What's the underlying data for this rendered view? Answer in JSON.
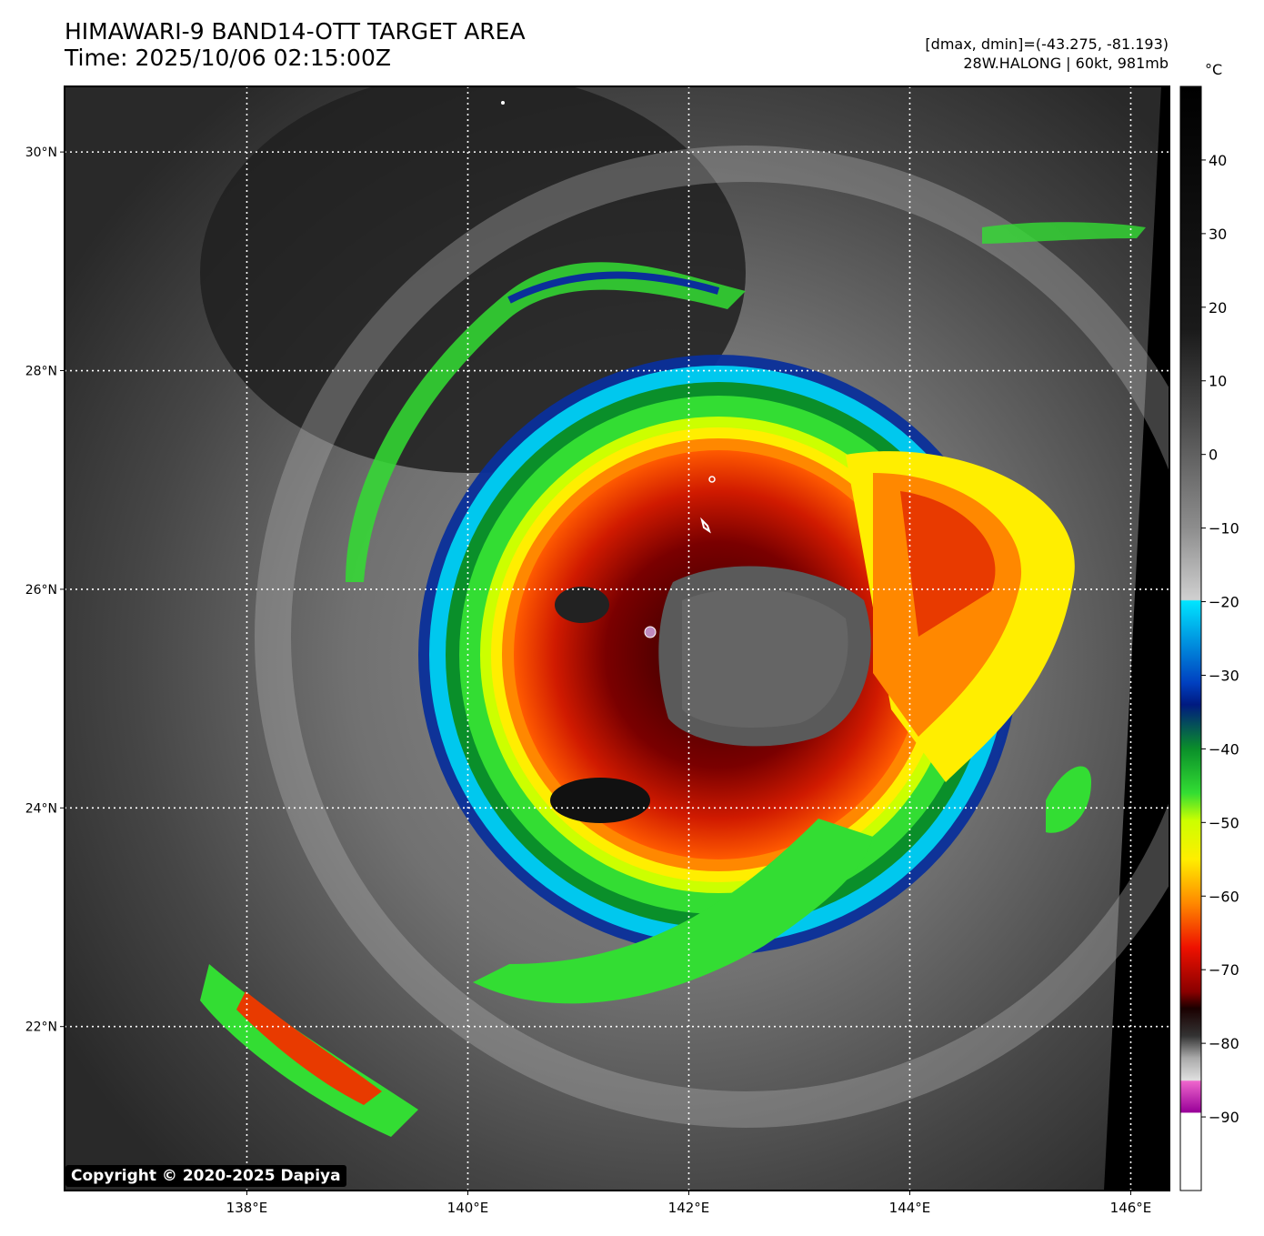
{
  "header": {
    "title_line1": "HIMAWARI-9 BAND14-OTT TARGET AREA",
    "title_line2": "Time: 2025/10/06 02:15:00Z",
    "dminmax": "[dmax, dmin]=(-43.275, -81.193)",
    "storm": "28W.HALONG | 60kt, 981mb"
  },
  "colorbar": {
    "unit": "°C",
    "tick_labels": [
      "40",
      "30",
      "20",
      "10",
      "0",
      "−10",
      "−20",
      "−30",
      "−40",
      "−50",
      "−60",
      "−70",
      "−80",
      "−90"
    ],
    "tick_values": [
      40,
      30,
      20,
      10,
      0,
      -10,
      -20,
      -30,
      -40,
      -50,
      -60,
      -70,
      -80,
      -90
    ],
    "range": [
      -100,
      50
    ]
  },
  "axes": {
    "x_labels": [
      "138°E",
      "140°E",
      "142°E",
      "144°E",
      "146°E"
    ],
    "x_values": [
      138,
      140,
      142,
      144,
      146
    ],
    "y_labels": [
      "30°N",
      "28°N",
      "26°N",
      "24°N",
      "22°N"
    ],
    "y_values": [
      30,
      28,
      26,
      24,
      22
    ],
    "lon_range": [
      136.35,
      146.35
    ],
    "lat_range": [
      20.5,
      30.6
    ]
  },
  "colors": {
    "background_land": "#1f1f1f",
    "cold_cloud_red": "#d01a00",
    "green": "#33dd33",
    "cyan": "#00e5ff",
    "blue": "#0a2f9a",
    "eye_gray": "#5a5a5a"
  },
  "copyright": "Copyright © 2020-2025 Dapiya"
}
